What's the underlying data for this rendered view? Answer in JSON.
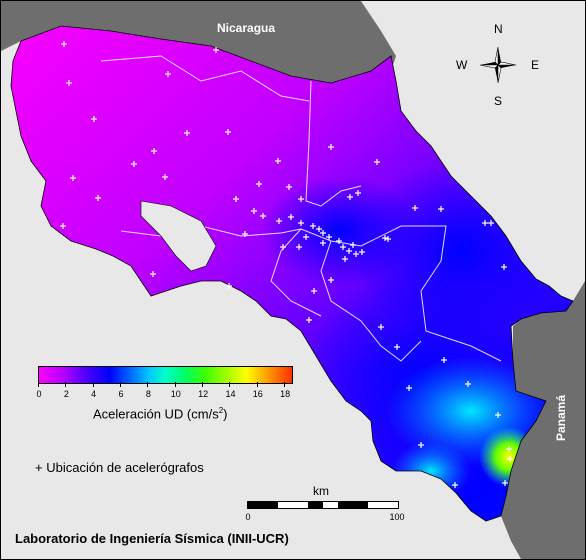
{
  "map": {
    "labels": {
      "north_neighbor": "Nicaragua",
      "south_neighbor": "Panamá"
    },
    "compass": {
      "n": "N",
      "s": "S",
      "e": "E",
      "w": "W"
    },
    "colorbar": {
      "title": "Aceleración UD (cm/s",
      "title_sup": "2",
      "title_close": ")",
      "ticks": [
        "0",
        "2",
        "4",
        "6",
        "8",
        "10",
        "12",
        "14",
        "16",
        "18"
      ],
      "min": 0,
      "max": 18.5
    },
    "station_legend": "+ Ubicación de acelerógrafos",
    "scale": {
      "title": "km",
      "start": "0",
      "end": "100"
    },
    "footer": "Laboratorio de Ingeniería Sísmica (INII-UCR)",
    "colors": {
      "land_neighbors": "#6e6e6e",
      "sea": "#e8e8e8",
      "low": "#ff00ff",
      "high": "#ffff00"
    }
  }
}
